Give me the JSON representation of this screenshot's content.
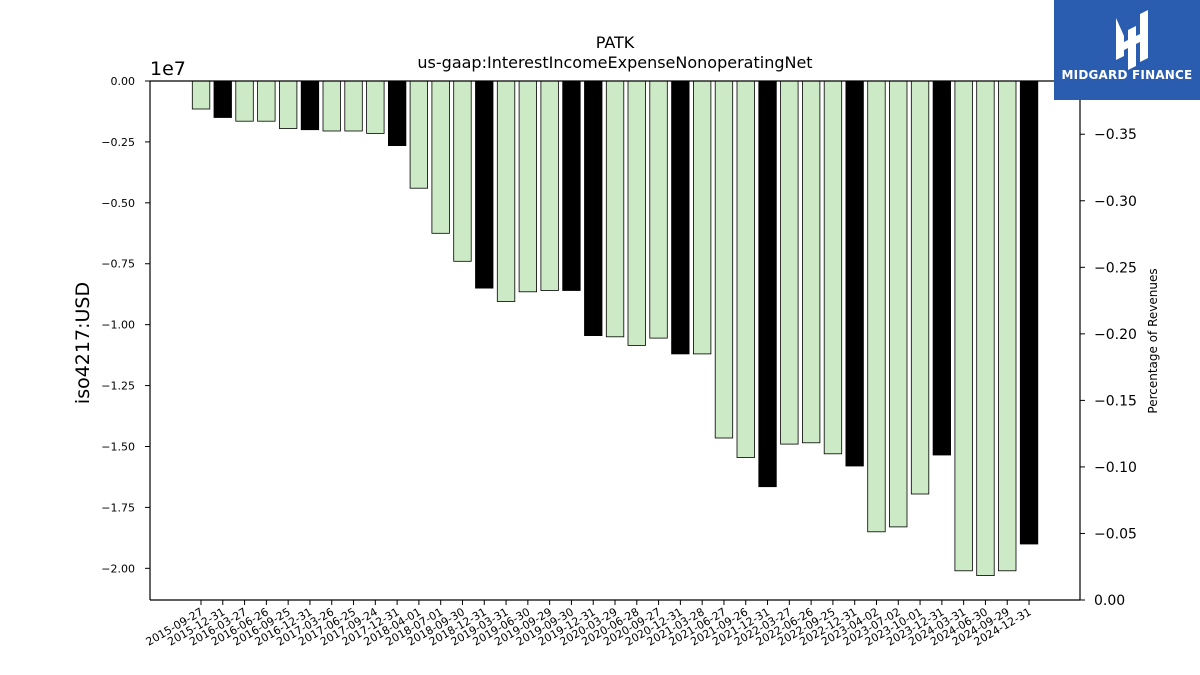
{
  "chart_data": {
    "type": "bar",
    "title": "PATK",
    "subtitle": "us-gaap:InterestIncomeExpenseNonoperatingNet",
    "ylabel": "iso4217:USD",
    "y2label": "Percentage of Revenues",
    "scale_label": "1e7",
    "ylim": [
      -2.13,
      0.0
    ],
    "y2lim": [
      0.0,
      -0.39
    ],
    "yticks": [
      "0.00",
      "−0.25",
      "−0.50",
      "−0.75",
      "−1.00",
      "−1.25",
      "−1.50",
      "−1.75",
      "−2.00"
    ],
    "y2ticks": [
      "0.00",
      "−0.05",
      "−0.10",
      "−0.15",
      "−0.20",
      "−0.25",
      "−0.30",
      "−0.35"
    ],
    "y2tick_values": [
      0.0,
      -0.05,
      -0.1,
      -0.15,
      -0.2,
      -0.25,
      -0.3,
      -0.35
    ],
    "categories": [
      "2015-09-27",
      "2015-12-31",
      "2016-03-27",
      "2016-06-26",
      "2016-09-25",
      "2016-12-31",
      "2017-03-26",
      "2017-06-25",
      "2017-09-24",
      "2017-12-31",
      "2018-04-01",
      "2018-07-01",
      "2018-09-30",
      "2018-12-31",
      "2019-03-31",
      "2019-06-30",
      "2019-09-29",
      "2019-09-30",
      "2019-12-31",
      "2020-03-29",
      "2020-06-28",
      "2020-09-27",
      "2020-12-31",
      "2021-03-28",
      "2021-06-27",
      "2021-09-26",
      "2021-12-31",
      "2022-03-27",
      "2022-06-26",
      "2022-09-25",
      "2022-12-31",
      "2023-04-02",
      "2023-07-02",
      "2023-10-01",
      "2023-12-31",
      "2024-03-31",
      "2024-06-30",
      "2024-09-29",
      "2024-12-31"
    ],
    "values": [
      -0.115,
      -0.15,
      -0.165,
      -0.165,
      -0.195,
      -0.2,
      -0.205,
      -0.205,
      -0.215,
      -0.265,
      -0.44,
      -0.625,
      -0.74,
      -0.85,
      -0.905,
      -0.865,
      -0.86,
      -0.86,
      -1.045,
      -1.05,
      -1.085,
      -1.055,
      -1.12,
      -1.12,
      -1.465,
      -1.545,
      -1.665,
      -1.49,
      -1.485,
      -1.53,
      -1.58,
      -1.85,
      -1.83,
      -1.695,
      -1.535,
      -2.01,
      -2.03,
      -2.01,
      -1.9
    ],
    "annual": [
      false,
      true,
      false,
      false,
      false,
      true,
      false,
      false,
      false,
      true,
      false,
      false,
      false,
      true,
      false,
      false,
      false,
      true,
      true,
      false,
      false,
      false,
      true,
      false,
      false,
      false,
      true,
      false,
      false,
      false,
      true,
      false,
      false,
      false,
      true,
      false,
      false,
      false,
      true
    ],
    "colors": {
      "quarterly": "#cdeac6",
      "annual": "#000000",
      "edge": "#000000"
    }
  },
  "logo": {
    "text": "MIDGARD FINANCE",
    "background": "#2a5db0",
    "icon": "midgard-logo-icon"
  }
}
